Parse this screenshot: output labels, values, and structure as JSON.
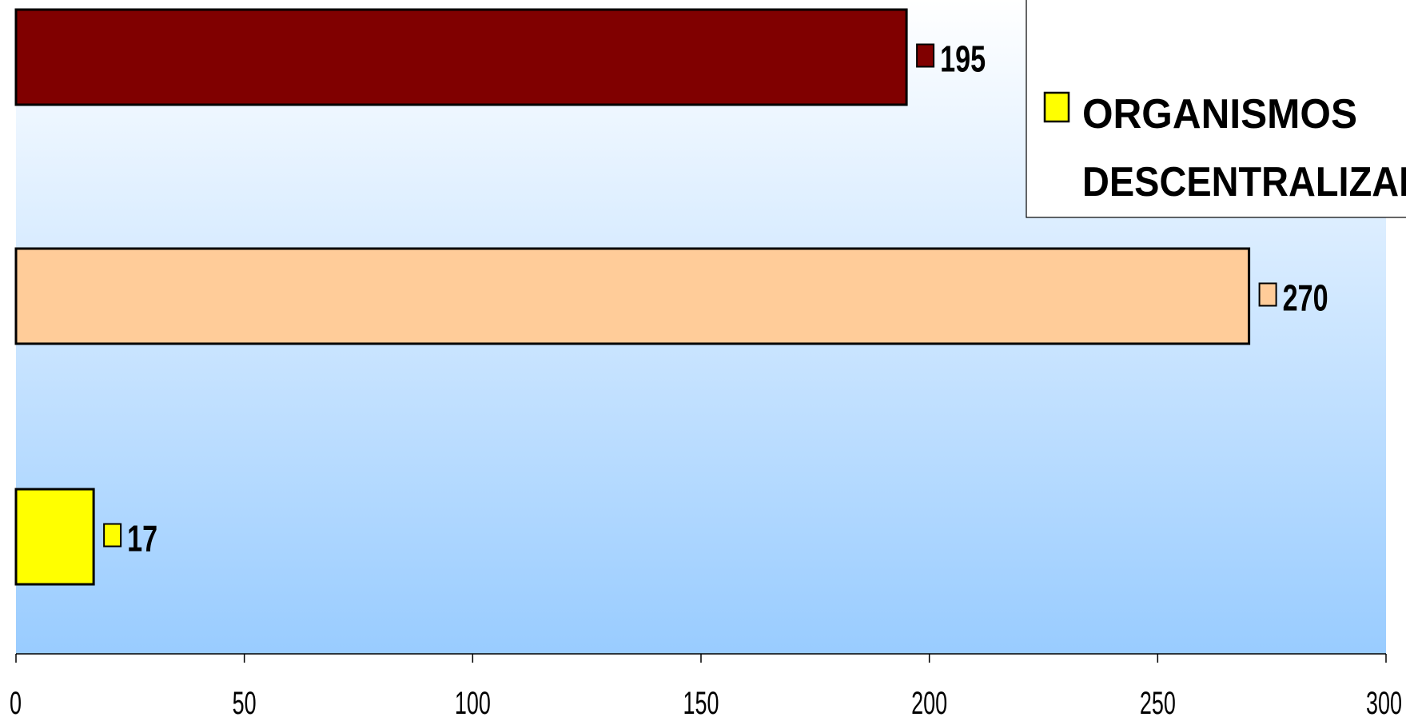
{
  "chart_data": {
    "type": "bar",
    "orientation": "horizontal",
    "categories": [
      "",
      "",
      ""
    ],
    "values": [
      195,
      270,
      17
    ],
    "bar_colors": [
      "#800000",
      "#FFCC99",
      "#FFFF00"
    ],
    "data_labels": [
      "195",
      "270",
      "17"
    ],
    "xlim": [
      0,
      300
    ],
    "x_ticks": [
      0,
      50,
      100,
      150,
      200,
      250,
      300
    ],
    "x_tick_labels": [
      "0",
      "50",
      "100",
      "150",
      "200",
      "250",
      "300"
    ],
    "grid": false,
    "background_gradient": [
      "#FFFFFF",
      "#99CCFF"
    ],
    "legend": {
      "placement": "top-right",
      "entries": [
        {
          "label": "ORGANISMOS DESCENTRALIZAD",
          "color": "#FFFF00"
        }
      ]
    }
  }
}
